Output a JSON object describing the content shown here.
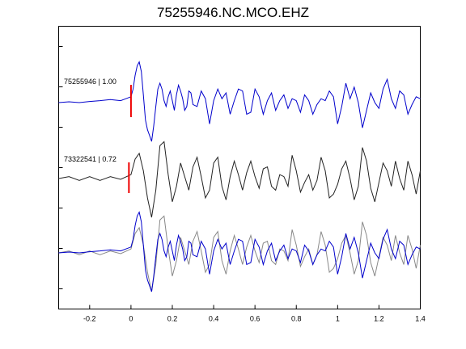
{
  "title": "75255946.NC.MCO.EHZ",
  "chart_data": {
    "type": "line",
    "title": "75255946.NC.MCO.EHZ",
    "xlabel": "",
    "ylabel": "",
    "xlim": [
      -0.35,
      1.4
    ],
    "x_ticks": [
      -0.2,
      0,
      0.2,
      0.4,
      0.6,
      0.8,
      1,
      1.2,
      1.4
    ],
    "x_tick_labels": [
      "-0.2",
      "0",
      "0.2",
      "0.4",
      "0.6",
      "0.8",
      "1",
      "1.2",
      "1.4"
    ],
    "y_tick_count": 7,
    "grid": false,
    "colors": {
      "primary": "#0000cc",
      "secondary": "#222222",
      "overlay_secondary": "#888888",
      "pick": "#ee0000"
    },
    "traces": [
      {
        "name": "75255946 | 1.00",
        "color": "#0000cc",
        "x": [
          -0.35,
          -0.3,
          -0.25,
          -0.2,
          -0.15,
          -0.1,
          -0.05,
          0,
          0.01,
          0.02,
          0.03,
          0.04,
          0.05,
          0.06,
          0.07,
          0.08,
          0.09,
          0.1,
          0.11,
          0.12,
          0.13,
          0.14,
          0.15,
          0.16,
          0.17,
          0.18,
          0.19,
          0.2,
          0.21,
          0.22,
          0.23,
          0.24,
          0.25,
          0.26,
          0.27,
          0.28,
          0.29,
          0.3,
          0.32,
          0.34,
          0.36,
          0.38,
          0.4,
          0.42,
          0.44,
          0.46,
          0.48,
          0.5,
          0.52,
          0.54,
          0.56,
          0.58,
          0.6,
          0.62,
          0.64,
          0.66,
          0.68,
          0.7,
          0.72,
          0.74,
          0.76,
          0.78,
          0.8,
          0.82,
          0.84,
          0.86,
          0.88,
          0.9,
          0.92,
          0.94,
          0.96,
          0.98,
          1.0,
          1.02,
          1.04,
          1.06,
          1.08,
          1.1,
          1.12,
          1.14,
          1.16,
          1.18,
          1.2,
          1.22,
          1.24,
          1.26,
          1.28,
          1.3,
          1.32,
          1.34,
          1.36,
          1.38,
          1.4
        ],
        "y": [
          0.0,
          0.02,
          0.0,
          0.03,
          0.05,
          0.08,
          0.05,
          0.15,
          0.35,
          0.7,
          0.95,
          1.05,
          0.8,
          0.2,
          -0.45,
          -0.7,
          -0.85,
          -1.0,
          -0.6,
          -0.1,
          0.35,
          0.5,
          0.35,
          0.05,
          -0.1,
          0.15,
          0.3,
          0.05,
          -0.2,
          0.2,
          0.45,
          0.3,
          0.1,
          -0.2,
          -0.1,
          0.3,
          0.25,
          -0.05,
          -0.1,
          0.3,
          0.1,
          -0.55,
          0.05,
          0.35,
          0.1,
          0.25,
          -0.3,
          0.05,
          0.35,
          0.3,
          -0.3,
          -0.25,
          0.35,
          0.15,
          -0.3,
          0.05,
          0.25,
          -0.2,
          0.05,
          0.2,
          -0.15,
          0.1,
          0.05,
          -0.25,
          0.2,
          0.05,
          -0.3,
          -0.05,
          0.1,
          0.05,
          0.3,
          0.15,
          -0.55,
          -0.1,
          0.5,
          0.1,
          0.4,
          0.0,
          -0.65,
          -0.2,
          0.25,
          0.0,
          -0.15,
          0.35,
          0.6,
          0.1,
          -0.15,
          0.3,
          0.2,
          -0.3,
          -0.05,
          0.15,
          0.1
        ]
      },
      {
        "name": "73322541 | 0.72",
        "color": "#222222",
        "x": [
          -0.35,
          -0.3,
          -0.25,
          -0.2,
          -0.15,
          -0.1,
          -0.05,
          0,
          0.02,
          0.04,
          0.06,
          0.08,
          0.1,
          0.12,
          0.14,
          0.16,
          0.18,
          0.2,
          0.22,
          0.24,
          0.26,
          0.28,
          0.3,
          0.32,
          0.34,
          0.36,
          0.38,
          0.4,
          0.42,
          0.44,
          0.46,
          0.48,
          0.5,
          0.52,
          0.54,
          0.56,
          0.58,
          0.6,
          0.62,
          0.64,
          0.66,
          0.68,
          0.7,
          0.72,
          0.74,
          0.76,
          0.78,
          0.8,
          0.82,
          0.84,
          0.86,
          0.88,
          0.9,
          0.92,
          0.94,
          0.96,
          0.98,
          1.0,
          1.02,
          1.04,
          1.06,
          1.08,
          1.1,
          1.12,
          1.14,
          1.16,
          1.18,
          1.2,
          1.22,
          1.24,
          1.26,
          1.28,
          1.3,
          1.32,
          1.34,
          1.36,
          1.38,
          1.4
        ],
        "y": [
          0.0,
          0.05,
          -0.05,
          0.05,
          -0.05,
          0.05,
          -0.02,
          0.1,
          0.5,
          0.65,
          0.2,
          -0.5,
          -1.0,
          -0.3,
          0.85,
          0.95,
          0.1,
          -0.6,
          -0.2,
          0.4,
          0.05,
          -0.3,
          0.3,
          0.55,
          0.05,
          -0.5,
          -0.3,
          0.4,
          0.55,
          -0.2,
          -0.55,
          0.05,
          0.45,
          0.1,
          -0.3,
          0.15,
          0.45,
          0.05,
          -0.25,
          0.25,
          0.3,
          -0.2,
          -0.3,
          0.1,
          0.05,
          -0.2,
          0.6,
          0.2,
          -0.35,
          -0.1,
          0.1,
          -0.3,
          -0.05,
          0.55,
          0.2,
          -0.5,
          -0.4,
          -0.15,
          0.25,
          0.45,
          0.0,
          -0.55,
          -0.2,
          0.8,
          0.45,
          -0.25,
          -0.6,
          -0.1,
          0.4,
          0.2,
          -0.2,
          0.45,
          0.0,
          -0.3,
          0.45,
          0.1,
          -0.4,
          0.2
        ]
      }
    ],
    "labels": [
      "75255946 | 1.00",
      "73322541 | 0.72"
    ]
  }
}
